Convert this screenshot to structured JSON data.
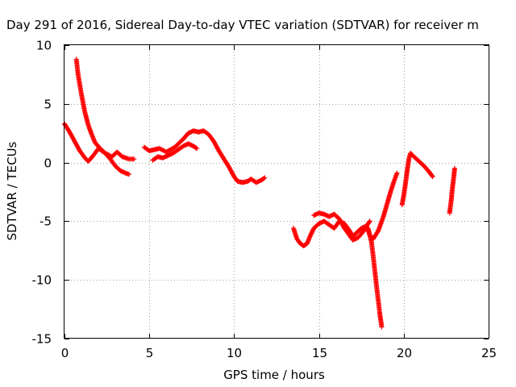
{
  "chart_data": {
    "type": "scatter",
    "title": "Day 291 of 2016, Sidereal Day-to-day VTEC variation (SDTVAR) for receiver m",
    "xlabel": "GPS time / hours",
    "ylabel": "SDTVAR / TECUs",
    "xlim": [
      0,
      25
    ],
    "ylim": [
      -15,
      10
    ],
    "xticks": [
      0,
      5,
      10,
      15,
      20,
      25
    ],
    "yticks": [
      -15,
      -10,
      -5,
      0,
      5,
      10
    ],
    "grid": true,
    "marker": "+",
    "color": "#ff0000",
    "segments": [
      {
        "x": [
          0.0,
          0.3,
          0.6,
          0.9,
          1.2,
          1.4,
          1.7,
          2.0,
          2.4,
          2.8,
          3.1,
          3.4,
          3.8,
          4.1
        ],
        "y": [
          3.3,
          2.6,
          1.8,
          1.0,
          0.4,
          0.1,
          0.6,
          1.2,
          0.8,
          0.5,
          0.9,
          0.5,
          0.3,
          0.3
        ]
      },
      {
        "x": [
          0.7,
          0.8,
          1.0,
          1.2,
          1.4,
          1.6,
          1.8,
          2.1,
          2.4,
          2.7,
          3.0,
          3.3,
          3.6,
          3.8
        ],
        "y": [
          8.8,
          7.5,
          5.8,
          4.3,
          3.2,
          2.4,
          1.7,
          1.2,
          0.8,
          0.3,
          -0.3,
          -0.7,
          -0.9,
          -1.0
        ]
      },
      {
        "x": [
          4.7,
          5.0,
          5.3,
          5.6,
          6.0,
          6.5,
          7.0,
          7.3,
          7.6,
          7.9,
          8.2,
          8.5,
          8.8,
          9.1,
          9.4,
          9.7,
          10.0,
          10.2,
          10.5,
          10.8,
          11.0,
          11.3,
          11.6,
          11.8
        ],
        "y": [
          1.3,
          1.0,
          1.1,
          1.2,
          0.9,
          1.3,
          2.0,
          2.5,
          2.7,
          2.6,
          2.7,
          2.4,
          1.8,
          1.0,
          0.3,
          -0.4,
          -1.2,
          -1.6,
          -1.7,
          -1.6,
          -1.4,
          -1.7,
          -1.5,
          -1.3
        ]
      },
      {
        "x": [
          5.2,
          5.5,
          5.8,
          6.1,
          6.4,
          6.7,
          7.0,
          7.3,
          7.6,
          7.8
        ],
        "y": [
          0.2,
          0.5,
          0.4,
          0.6,
          0.8,
          1.1,
          1.4,
          1.6,
          1.4,
          1.2
        ]
      },
      {
        "x": [
          13.5,
          13.7,
          13.9,
          14.1,
          14.3,
          14.5,
          14.7,
          15.0,
          15.3,
          15.6,
          15.9,
          16.2,
          16.5,
          16.8,
          17.0,
          17.2,
          17.5,
          17.8,
          18.0,
          18.2
        ],
        "y": [
          -5.6,
          -6.5,
          -6.9,
          -7.1,
          -6.9,
          -6.2,
          -5.6,
          -5.2,
          -5.0,
          -5.3,
          -5.6,
          -5.0,
          -5.2,
          -5.8,
          -6.3,
          -6.0,
          -5.6,
          -5.4,
          -6.2,
          -6.5
        ]
      },
      {
        "x": [
          14.7,
          15.0,
          15.3,
          15.6,
          15.9,
          16.2,
          16.5,
          16.8,
          17.0,
          17.3,
          17.6,
          17.9,
          18.0
        ],
        "y": [
          -4.5,
          -4.3,
          -4.4,
          -4.6,
          -4.4,
          -4.8,
          -5.6,
          -6.2,
          -6.6,
          -6.4,
          -5.9,
          -5.2,
          -5.0
        ]
      },
      {
        "x": [
          17.9,
          18.1,
          18.2,
          18.3,
          18.4,
          18.5,
          18.6,
          18.7
        ],
        "y": [
          -5.6,
          -6.8,
          -8.0,
          -9.3,
          -10.6,
          -11.8,
          -13.0,
          -14.0
        ]
      },
      {
        "x": [
          18.2,
          18.5,
          18.8,
          19.0,
          19.2,
          19.4,
          19.6
        ],
        "y": [
          -6.5,
          -5.8,
          -4.6,
          -3.6,
          -2.6,
          -1.7,
          -0.9
        ]
      },
      {
        "x": [
          19.9,
          20.0,
          20.1,
          20.2,
          20.3,
          20.4,
          20.6,
          20.9,
          21.2,
          21.5,
          21.7
        ],
        "y": [
          -3.6,
          -2.8,
          -1.8,
          -0.7,
          0.3,
          0.8,
          0.5,
          0.1,
          -0.3,
          -0.8,
          -1.2
        ]
      },
      {
        "x": [
          22.7,
          22.8,
          22.85,
          22.9,
          22.95,
          23.0
        ],
        "y": [
          -4.3,
          -3.2,
          -2.4,
          -1.8,
          -1.2,
          -0.5
        ]
      }
    ]
  }
}
